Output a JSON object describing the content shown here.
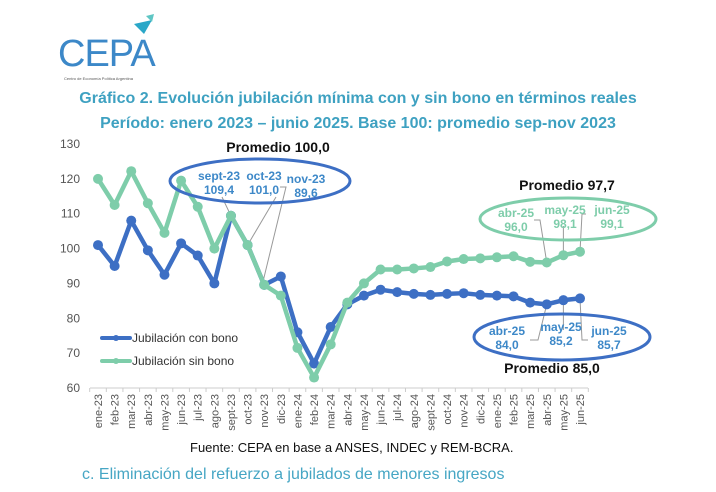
{
  "logo": {
    "text": "CEPA",
    "subtitle": "Centro de Economía Política Argentina"
  },
  "header": {
    "title": "Gráfico 2. Evolución jubilación mínima con y sin bono en términos reales",
    "subtitle": "Período: enero 2023 – junio 2025. Base 100: promedio sep-nov 2023"
  },
  "colors": {
    "con_bono": "#3d6fc4",
    "sin_bono": "#7ecdaa",
    "title": "#3ea1c1"
  },
  "chart_data": {
    "type": "line",
    "title": "Gráfico 2. Evolución jubilación mínima con y sin bono en términos reales",
    "ylim": [
      60,
      130
    ],
    "yticks": [
      "60",
      "70",
      "80",
      "90",
      "100",
      "110",
      "120",
      "130"
    ],
    "categories": [
      "ene-23",
      "feb-23",
      "mar-23",
      "abr-23",
      "may-23",
      "jun-23",
      "jul-23",
      "ago-23",
      "sept-23",
      "oct-23",
      "nov-23",
      "dic-23",
      "ene-24",
      "feb-24",
      "mar-24",
      "abr-24",
      "may-24",
      "jun-24",
      "jul-24",
      "ago-24",
      "sept-24",
      "oct-24",
      "nov-24",
      "dic-24",
      "ene-25",
      "feb-25",
      "mar-25",
      "abr-25",
      "may-25",
      "jun-25"
    ],
    "series": [
      {
        "name": "Jubilación con bono",
        "values": [
          101,
          95,
          108,
          99.5,
          92.5,
          101.5,
          98,
          90,
          109.4,
          101,
          89.6,
          92,
          76,
          67,
          77.5,
          84,
          86.5,
          88.2,
          87.5,
          87,
          86.7,
          87,
          87.2,
          86.7,
          86.5,
          86.3,
          84.5,
          84,
          85.2,
          85.7
        ]
      },
      {
        "name": "Jubilación sin bono",
        "values": [
          120,
          112.5,
          122.2,
          113,
          104.5,
          119.5,
          112,
          100,
          109.4,
          101,
          89.6,
          86.5,
          71.5,
          63,
          72.5,
          84.5,
          90,
          94,
          94,
          94.3,
          94.7,
          96.3,
          97,
          97.2,
          97.5,
          97.8,
          96.2,
          96,
          98.1,
          99.1
        ]
      }
    ],
    "legend": [
      "Jubilación con bono",
      "Jubilación sin bono"
    ],
    "legend_position": "bottom-left",
    "annotations": {
      "top": {
        "heading": "Promedio 100,0",
        "items": [
          {
            "label": "sept-23",
            "value": "109,4"
          },
          {
            "label": "oct-23",
            "value": "101,0"
          },
          {
            "label": "nov-23",
            "value": "89,6"
          }
        ]
      },
      "sin_bono": {
        "heading": "Promedio 97,7",
        "items": [
          {
            "label": "abr-25",
            "value": "96,0"
          },
          {
            "label": "may-25",
            "value": "98,1"
          },
          {
            "label": "jun-25",
            "value": "99,1"
          }
        ]
      },
      "con_bono": {
        "heading": "Promedio 85,0",
        "items": [
          {
            "label": "abr-25",
            "value": "84,0"
          },
          {
            "label": "may-25",
            "value": "85,2"
          },
          {
            "label": "jun-25",
            "value": "85,7"
          }
        ]
      }
    }
  },
  "footer": {
    "source": "Fuente: CEPA en base a ANSES, INDEC y REM-BCRA.",
    "section": "c.   Eliminación del refuerzo a jubilados de menores ingresos"
  }
}
